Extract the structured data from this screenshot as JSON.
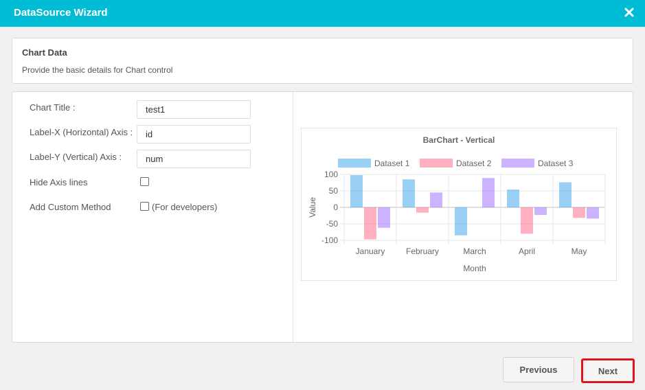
{
  "window": {
    "title": "DataSource Wizard",
    "close_icon": "close-icon"
  },
  "info": {
    "heading": "Chart Data",
    "description": "Provide the basic details for Chart control"
  },
  "form": {
    "chart_title_label": "Chart Title :",
    "chart_title_value": "test1",
    "label_x_label": "Label-X (Horizontal) Axis :",
    "label_x_value": "id",
    "label_y_label": "Label-Y (Vertical) Axis :",
    "label_y_value": "num",
    "hide_axis_label": "Hide Axis lines",
    "hide_axis_checked": false,
    "custom_method_label": "Add Custom Method",
    "custom_method_note": "(For developers)",
    "custom_method_checked": false
  },
  "chart_data": {
    "type": "bar",
    "title": "BarChart - Vertical",
    "xlabel": "Month",
    "ylabel": "Value",
    "categories": [
      "January",
      "February",
      "March",
      "April",
      "May"
    ],
    "ylim": [
      -100,
      100
    ],
    "yticks": [
      100,
      50,
      0,
      -50,
      -100
    ],
    "grid": true,
    "legend_position": "top",
    "series": [
      {
        "name": "Dataset 1",
        "color": "#36a2eb",
        "values": [
          98,
          85,
          -85,
          54,
          76
        ]
      },
      {
        "name": "Dataset 2",
        "color": "#ff6384",
        "values": [
          -97,
          -16,
          0,
          -80,
          -32
        ]
      },
      {
        "name": "Dataset 3",
        "color": "#9966ff",
        "values": [
          -62,
          45,
          89,
          -23,
          -34
        ]
      }
    ]
  },
  "buttons": {
    "previous": "Previous",
    "next": "Next"
  },
  "colors": {
    "titlebar": "#00bcd4",
    "next_highlight": "#e0141c"
  }
}
